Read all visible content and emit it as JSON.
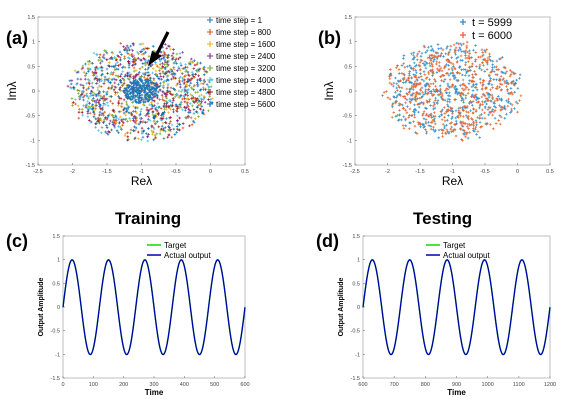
{
  "labels": {
    "panel_a": "(a)",
    "panel_b": "(b)",
    "panel_c": "(c)",
    "panel_d": "(d)",
    "training": "Training",
    "testing": "Testing"
  },
  "chart_data": [
    {
      "id": "a",
      "type": "scatter",
      "title": "",
      "xlabel": "Reλ",
      "ylabel": "Imλ",
      "xlim": [
        -2.5,
        0.5
      ],
      "ylim": [
        -1.5,
        1.5
      ],
      "xticks": [
        -2.5,
        -2,
        -1.5,
        -1,
        -0.5,
        0,
        0.5
      ],
      "yticks": [
        -1.5,
        -1,
        -0.5,
        0,
        0.5,
        1,
        1.5
      ],
      "grid": false,
      "legend_position": "top-right",
      "cloud": {
        "center": [
          -1,
          0
        ],
        "radius": 1.1
      },
      "annotation": "arrow pointing to the eigenvalue cloud",
      "series": [
        {
          "name": "time step =    1",
          "color": "#1f77b4"
        },
        {
          "name": "time step =  800",
          "color": "#d95319"
        },
        {
          "name": "time step = 1600",
          "color": "#edb120"
        },
        {
          "name": "time step = 2400",
          "color": "#7e2f8e"
        },
        {
          "name": "time step = 3200",
          "color": "#77ac30"
        },
        {
          "name": "time step = 4000",
          "color": "#4dbeee"
        },
        {
          "name": "time step = 4800",
          "color": "#a2142f"
        },
        {
          "name": "time step = 5600",
          "color": "#0072bd"
        }
      ]
    },
    {
      "id": "b",
      "type": "scatter",
      "title": "",
      "xlabel": "Reλ",
      "ylabel": "Imλ",
      "xlim": [
        -2.5,
        0.5
      ],
      "ylim": [
        -1.5,
        1.5
      ],
      "xticks": [
        -2.5,
        -2,
        -1.5,
        -1,
        -0.5,
        0,
        0.5
      ],
      "yticks": [
        -1.5,
        -1,
        -0.5,
        0,
        0.5,
        1,
        1.5
      ],
      "grid": false,
      "legend_position": "top-right",
      "cloud": {
        "center": [
          -1,
          0
        ],
        "radius": 1.1
      },
      "series": [
        {
          "name": "t = 5999",
          "color": "#2e8fc9"
        },
        {
          "name": "t = 6000",
          "color": "#e8642a"
        }
      ]
    },
    {
      "id": "c",
      "type": "line",
      "title": "Training",
      "xlabel": "Time",
      "ylabel": "Output Amplitude",
      "xlim": [
        0,
        600
      ],
      "ylim": [
        -1.5,
        1.5
      ],
      "xticks": [
        0,
        100,
        200,
        300,
        400,
        500,
        600
      ],
      "yticks": [
        -1.5,
        -1,
        -0.5,
        0,
        0.5,
        1,
        1.5
      ],
      "grid": false,
      "legend_position": "top-right",
      "signal": {
        "amplitude": 1,
        "period": 120,
        "phase_x": 0
      },
      "series": [
        {
          "name": "Target",
          "color": "#00e000"
        },
        {
          "name": "Actual output",
          "color": "#0000aa"
        }
      ]
    },
    {
      "id": "d",
      "type": "line",
      "title": "Testing",
      "xlabel": "Time",
      "ylabel": "Output Amplitude",
      "xlim": [
        600,
        1200
      ],
      "ylim": [
        -1.5,
        1.5
      ],
      "xticks": [
        600,
        700,
        800,
        900,
        1000,
        1100,
        1200
      ],
      "yticks": [
        -1.5,
        -1,
        -0.5,
        0,
        0.5,
        1,
        1.5
      ],
      "grid": false,
      "legend_position": "top-left",
      "signal": {
        "amplitude": 1,
        "period": 120,
        "phase_x": 600
      },
      "series": [
        {
          "name": "Target",
          "color": "#00e000"
        },
        {
          "name": "Actual output",
          "color": "#0000aa"
        }
      ]
    }
  ]
}
